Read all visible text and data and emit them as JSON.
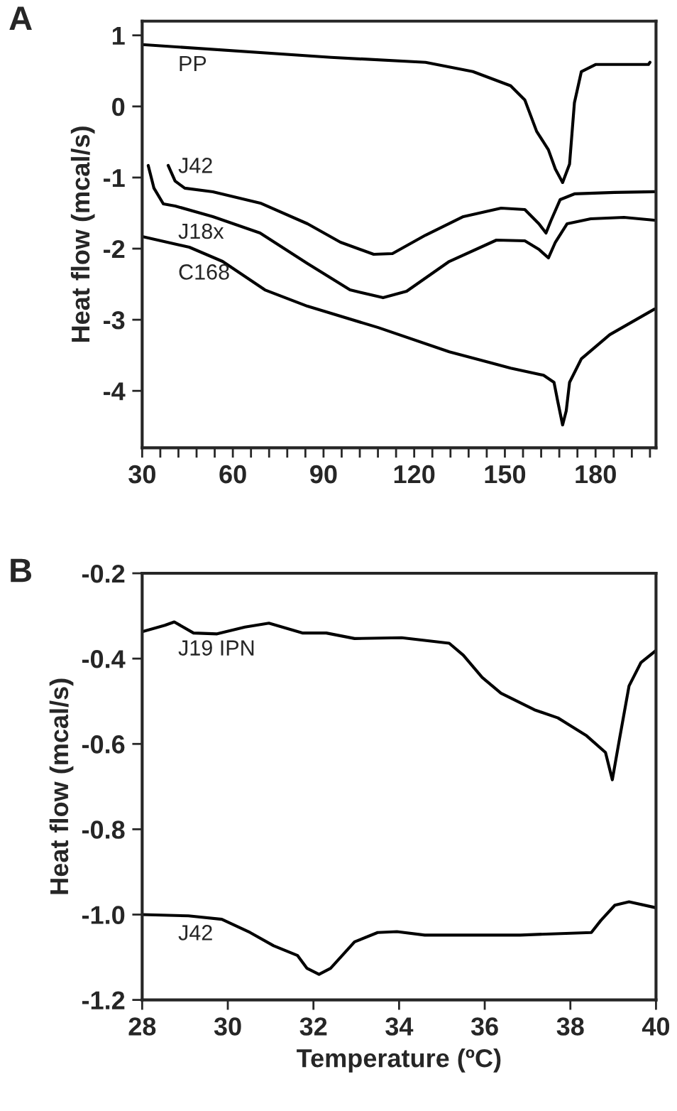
{
  "chart_data": [
    {
      "type": "line",
      "ylabel": "Heat flow (mcal/s)",
      "xlim": [
        30,
        200
      ],
      "ylim": [
        -4.8,
        1.2
      ],
      "xticks": [
        30,
        {
          "value": 36,
          "label": null
        },
        {
          "value": 42,
          "label": null
        },
        {
          "value": 48,
          "label": null
        },
        {
          "value": 54,
          "label": null
        },
        60,
        {
          "value": 66,
          "label": null
        },
        {
          "value": 72,
          "label": null
        },
        {
          "value": 78,
          "label": null
        },
        {
          "value": 84,
          "label": null
        },
        90,
        {
          "value": 96,
          "label": null
        },
        {
          "value": 102,
          "label": null
        },
        {
          "value": 108,
          "label": null
        },
        {
          "value": 114,
          "label": null
        },
        120,
        {
          "value": 126,
          "label": null
        },
        {
          "value": 132,
          "label": null
        },
        {
          "value": 138,
          "label": null
        },
        {
          "value": 144,
          "label": null
        },
        150,
        {
          "value": 156,
          "label": null
        },
        {
          "value": 162,
          "label": null
        },
        {
          "value": 168,
          "label": null
        },
        {
          "value": 174,
          "label": null
        },
        180,
        {
          "value": 186,
          "label": null
        },
        {
          "value": 192,
          "label": null
        },
        {
          "value": 198,
          "label": null
        }
      ],
      "yticks": [
        -4,
        -3,
        -2,
        -1,
        0,
        1
      ],
      "grid": false,
      "legend": false,
      "line_style": "solid",
      "marker": "none",
      "annotations": [
        "A"
      ],
      "series": [
        {
          "name": "PP",
          "color": "#000000",
          "x": [
            30,
            92.5,
            123.75,
            139.4,
            151.9,
            156.6,
            160.5,
            164.4,
            166.7,
            169.1,
            171.4,
            173,
            175.3,
            180,
            197.5,
            198
          ],
          "values": [
            0.87,
            0.69,
            0.62,
            0.49,
            0.29,
            0.09,
            -0.35,
            -0.61,
            -0.88,
            -1.07,
            -0.81,
            0.05,
            0.49,
            0.59,
            0.59,
            0.62
          ]
        },
        {
          "name": "J42",
          "color": "#000000",
          "x": [
            38.6,
            40.9,
            44.1,
            53.4,
            69.1,
            84.7,
            95.6,
            106.6,
            112.8,
            123.75,
            136.25,
            148.75,
            156.6,
            161.25,
            163.6,
            165.2,
            168.3,
            173,
            186.25,
            199.5
          ],
          "values": [
            -0.83,
            -1.05,
            -1.15,
            -1.2,
            -1.36,
            -1.65,
            -1.91,
            -2.08,
            -2.07,
            -1.81,
            -1.55,
            -1.43,
            -1.45,
            -1.65,
            -1.78,
            -1.61,
            -1.31,
            -1.23,
            -1.21,
            -1.2
          ]
        },
        {
          "name": "J18x",
          "color": "#000000",
          "x": [
            32,
            33.9,
            37,
            40.9,
            53.4,
            69,
            84.7,
            98.75,
            109.7,
            117.5,
            131.6,
            147.2,
            156.6,
            161.25,
            164.4,
            166.7,
            170.6,
            178.4,
            189.4,
            199.5
          ],
          "values": [
            -0.83,
            -1.15,
            -1.37,
            -1.4,
            -1.55,
            -1.78,
            -2.21,
            -2.58,
            -2.69,
            -2.6,
            -2.18,
            -1.88,
            -1.89,
            -2.01,
            -2.13,
            -1.91,
            -1.65,
            -1.58,
            -1.56,
            -1.6
          ]
        },
        {
          "name": "C168",
          "color": "#000000",
          "x": [
            30,
            45.6,
            56.6,
            70.6,
            84.7,
            108.1,
            131.6,
            151.9,
            162.8,
            166.25,
            167.5,
            169.1,
            170.3,
            171.4,
            175.3,
            184.7,
            199.5
          ],
          "values": [
            -1.83,
            -1.98,
            -2.18,
            -2.58,
            -2.81,
            -3.11,
            -3.45,
            -3.68,
            -3.78,
            -3.88,
            -4.15,
            -4.48,
            -4.28,
            -3.88,
            -3.55,
            -3.21,
            -2.85
          ]
        }
      ]
    },
    {
      "type": "line",
      "xlabel": "Temperature (ºC)",
      "ylabel": "Heat flow (mcal/s)",
      "xlim": [
        28,
        40
      ],
      "ylim": [
        -1.2,
        -0.2
      ],
      "xticks": [
        28,
        30,
        32,
        34,
        36,
        38,
        40
      ],
      "yticks": [
        -1.2,
        {
          "value": -1.0,
          "label": "-1.0"
        },
        -0.8,
        -0.6,
        -0.4,
        -0.2
      ],
      "grid": false,
      "legend": false,
      "line_style": "solid",
      "marker": "none",
      "annotations": [
        "B"
      ],
      "series": [
        {
          "name": "J19 IPN",
          "color": "#000000",
          "x": [
            28,
            28.53,
            28.75,
            29.2,
            29.75,
            30.4,
            30.96,
            31.74,
            32.3,
            32.96,
            34.06,
            35.17,
            35.5,
            35.94,
            36.38,
            37.16,
            37.71,
            38.38,
            38.82,
            38.98,
            39.15,
            39.37,
            39.65,
            40
          ],
          "values": [
            -0.337,
            -0.322,
            -0.314,
            -0.34,
            -0.342,
            -0.326,
            -0.317,
            -0.34,
            -0.34,
            -0.353,
            -0.351,
            -0.364,
            -0.392,
            -0.444,
            -0.481,
            -0.52,
            -0.539,
            -0.581,
            -0.62,
            -0.684,
            -0.587,
            -0.464,
            -0.409,
            -0.381
          ]
        },
        {
          "name": "J42",
          "color": "#000000",
          "x": [
            28,
            29.08,
            29.86,
            30.52,
            31.07,
            31.63,
            31.85,
            32.13,
            32.4,
            32.96,
            33.5,
            33.95,
            34.6,
            36.83,
            38.49,
            38.71,
            39.04,
            39.37,
            40
          ],
          "values": [
            -1.0,
            -1.003,
            -1.011,
            -1.042,
            -1.073,
            -1.096,
            -1.126,
            -1.14,
            -1.126,
            -1.064,
            -1.042,
            -1.04,
            -1.048,
            -1.048,
            -1.042,
            -1.014,
            -0.978,
            -0.97,
            -0.984
          ]
        }
      ]
    }
  ]
}
